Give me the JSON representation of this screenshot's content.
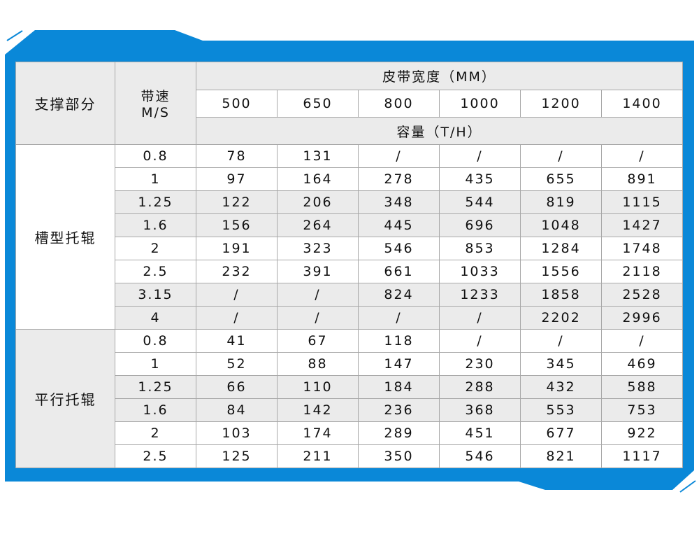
{
  "colors": {
    "frame_blue": "#0a88d8",
    "header_gray": "#ebebeb",
    "grid": "#a8a8a8"
  },
  "header": {
    "support_label": "支撑部分",
    "speed_label_1": "带速",
    "speed_label_2": "M/S",
    "width_label": "皮带宽度（MM）",
    "widths": [
      "500",
      "650",
      "800",
      "1000",
      "1200",
      "1400"
    ],
    "capacity_label": "容量（T/H）"
  },
  "groups": [
    {
      "label": "槽型托辊",
      "rows": [
        {
          "speed": "0.8",
          "values": [
            "78",
            "131",
            "/",
            "/",
            "/",
            "/"
          ],
          "shaded": false
        },
        {
          "speed": "1",
          "values": [
            "97",
            "164",
            "278",
            "435",
            "655",
            "891"
          ],
          "shaded": false
        },
        {
          "speed": "1.25",
          "values": [
            "122",
            "206",
            "348",
            "544",
            "819",
            "1115"
          ],
          "shaded": true
        },
        {
          "speed": "1.6",
          "values": [
            "156",
            "264",
            "445",
            "696",
            "1048",
            "1427"
          ],
          "shaded": true
        },
        {
          "speed": "2",
          "values": [
            "191",
            "323",
            "546",
            "853",
            "1284",
            "1748"
          ],
          "shaded": false
        },
        {
          "speed": "2.5",
          "values": [
            "232",
            "391",
            "661",
            "1033",
            "1556",
            "2118"
          ],
          "shaded": false
        },
        {
          "speed": "3.15",
          "values": [
            "/",
            "/",
            "824",
            "1233",
            "1858",
            "2528"
          ],
          "shaded": true
        },
        {
          "speed": "4",
          "values": [
            "/",
            "/",
            "/",
            "/",
            "2202",
            "2996"
          ],
          "shaded": true
        }
      ]
    },
    {
      "label": "平行托辊",
      "rows": [
        {
          "speed": "0.8",
          "values": [
            "41",
            "67",
            "118",
            "/",
            "/",
            "/"
          ],
          "shaded": false
        },
        {
          "speed": "1",
          "values": [
            "52",
            "88",
            "147",
            "230",
            "345",
            "469"
          ],
          "shaded": false
        },
        {
          "speed": "1.25",
          "values": [
            "66",
            "110",
            "184",
            "288",
            "432",
            "588"
          ],
          "shaded": true
        },
        {
          "speed": "1.6",
          "values": [
            "84",
            "142",
            "236",
            "368",
            "553",
            "753"
          ],
          "shaded": true
        },
        {
          "speed": "2",
          "values": [
            "103",
            "174",
            "289",
            "451",
            "677",
            "922"
          ],
          "shaded": false
        },
        {
          "speed": "2.5",
          "values": [
            "125",
            "211",
            "350",
            "546",
            "821",
            "1117"
          ],
          "shaded": false
        }
      ]
    }
  ]
}
